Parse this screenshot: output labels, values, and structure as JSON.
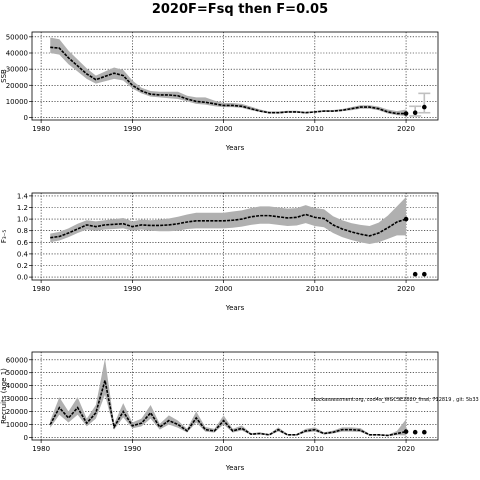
{
  "title": "2020F=Fsq then F=0.05",
  "annotation": "stockassessment.org, cod4a_WGCSE2020_final, 712819 , git: 5b33",
  "colors": {
    "band": "#b0b0b0",
    "line": "#000000",
    "bar": "#c0c0c0",
    "grid": "#000000"
  },
  "chart_data": [
    {
      "type": "line",
      "ylabel": "SSB",
      "xlabel": "Years",
      "xlim": [
        1979,
        2023.5
      ],
      "ylim": [
        -1500,
        53000
      ],
      "xticks": [
        1980,
        1990,
        2000,
        2010,
        2020
      ],
      "yticks": [
        0,
        10000,
        20000,
        30000,
        40000,
        50000
      ],
      "x": [
        1981,
        1982,
        1983,
        1984,
        1985,
        1986,
        1987,
        1988,
        1989,
        1990,
        1991,
        1992,
        1993,
        1994,
        1995,
        1996,
        1997,
        1998,
        1999,
        2000,
        2001,
        2002,
        2003,
        2004,
        2005,
        2006,
        2007,
        2008,
        2009,
        2010,
        2011,
        2012,
        2013,
        2014,
        2015,
        2016,
        2017,
        2018,
        2019,
        2020
      ],
      "y": [
        43500,
        43000,
        37000,
        32000,
        27000,
        23500,
        25500,
        27500,
        26000,
        20000,
        16500,
        14500,
        14000,
        14000,
        13500,
        11500,
        10000,
        9500,
        8500,
        7500,
        7500,
        7000,
        5500,
        4000,
        3000,
        3000,
        3500,
        3500,
        3000,
        3500,
        4000,
        4000,
        4500,
        5500,
        6500,
        6500,
        5500,
        3500,
        2500,
        2500
      ],
      "lower": [
        40000,
        39000,
        33000,
        28500,
        24000,
        21000,
        22500,
        24000,
        23000,
        18000,
        15000,
        13000,
        12500,
        12000,
        11500,
        10000,
        8500,
        8000,
        7000,
        6500,
        6500,
        6000,
        4500,
        3500,
        2500,
        2500,
        3000,
        3000,
        2500,
        3000,
        3500,
        3500,
        4000,
        4500,
        5500,
        5500,
        4500,
        2500,
        1500,
        1000
      ],
      "upper": [
        49500,
        48500,
        41500,
        36000,
        30500,
        26000,
        28500,
        31000,
        29500,
        23000,
        18500,
        16500,
        16000,
        16000,
        16000,
        13500,
        12500,
        12500,
        10500,
        9000,
        9000,
        8500,
        6800,
        5000,
        3800,
        3800,
        4200,
        4200,
        3600,
        4100,
        4700,
        4700,
        5300,
        6500,
        7600,
        7600,
        6800,
        5000,
        4000,
        5000
      ],
      "forecast": [
        {
          "x": 2020,
          "y": 2500
        },
        {
          "x": 2021,
          "y": 3000,
          "lower": 1000,
          "upper": 7000
        },
        {
          "x": 2022,
          "y": 6500,
          "lower": 3000,
          "upper": 15000
        }
      ]
    },
    {
      "type": "line",
      "ylabel": "F₃₋₅",
      "xlabel": "Years",
      "xlim": [
        1979,
        2023.5
      ],
      "ylim": [
        -0.05,
        1.45
      ],
      "xticks": [
        1980,
        1990,
        2000,
        2010,
        2020
      ],
      "yticks": [
        0.0,
        0.2,
        0.4,
        0.6,
        0.8,
        1.0,
        1.2,
        1.4
      ],
      "ytick_labels": [
        "0.0",
        "0.2",
        "0.4",
        "0.6",
        "0.8",
        "1.0",
        "1.2",
        "1.4"
      ],
      "x": [
        1981,
        1982,
        1983,
        1984,
        1985,
        1986,
        1987,
        1988,
        1989,
        1990,
        1991,
        1992,
        1993,
        1994,
        1995,
        1996,
        1997,
        1998,
        1999,
        2000,
        2001,
        2002,
        2003,
        2004,
        2005,
        2006,
        2007,
        2008,
        2009,
        2010,
        2011,
        2012,
        2013,
        2014,
        2015,
        2016,
        2017,
        2018,
        2019,
        2020
      ],
      "y": [
        0.68,
        0.7,
        0.76,
        0.83,
        0.9,
        0.87,
        0.9,
        0.91,
        0.92,
        0.87,
        0.9,
        0.89,
        0.89,
        0.9,
        0.92,
        0.95,
        0.97,
        0.97,
        0.97,
        0.97,
        0.98,
        1.0,
        1.04,
        1.06,
        1.06,
        1.04,
        1.02,
        1.03,
        1.08,
        1.03,
        1.01,
        0.9,
        0.83,
        0.78,
        0.74,
        0.71,
        0.76,
        0.85,
        0.95,
        1.0
      ],
      "lower": [
        0.6,
        0.63,
        0.69,
        0.76,
        0.82,
        0.8,
        0.82,
        0.83,
        0.84,
        0.8,
        0.82,
        0.8,
        0.79,
        0.79,
        0.8,
        0.83,
        0.84,
        0.84,
        0.84,
        0.84,
        0.85,
        0.87,
        0.9,
        0.92,
        0.92,
        0.9,
        0.88,
        0.89,
        0.93,
        0.88,
        0.86,
        0.76,
        0.69,
        0.64,
        0.6,
        0.57,
        0.6,
        0.66,
        0.72,
        0.72
      ],
      "upper": [
        0.75,
        0.78,
        0.84,
        0.92,
        0.98,
        0.96,
        0.98,
        1.0,
        1.02,
        0.96,
        0.99,
        0.98,
        0.99,
        1.01,
        1.04,
        1.08,
        1.11,
        1.11,
        1.11,
        1.11,
        1.13,
        1.15,
        1.19,
        1.22,
        1.22,
        1.2,
        1.18,
        1.19,
        1.24,
        1.19,
        1.17,
        1.05,
        0.98,
        0.93,
        0.9,
        0.88,
        0.94,
        1.06,
        1.22,
        1.38
      ],
      "forecast": [
        {
          "x": 2020,
          "y": 1.0
        },
        {
          "x": 2021,
          "y": 0.05
        },
        {
          "x": 2022,
          "y": 0.05
        }
      ]
    },
    {
      "type": "line",
      "ylabel": "Recruits (age 1)",
      "xlabel": "Years",
      "xlim": [
        1979,
        2023.5
      ],
      "ylim": [
        -2000,
        66000
      ],
      "xticks": [
        1980,
        1990,
        2000,
        2010,
        2020
      ],
      "yticks": [
        0,
        10000,
        20000,
        30000,
        40000,
        50000,
        60000
      ],
      "x": [
        1981,
        1982,
        1983,
        1984,
        1985,
        1986,
        1987,
        1988,
        1989,
        1990,
        1991,
        1992,
        1993,
        1994,
        1995,
        1996,
        1997,
        1998,
        1999,
        2000,
        2001,
        2002,
        2003,
        2004,
        2005,
        2006,
        2007,
        2008,
        2009,
        2010,
        2011,
        2012,
        2013,
        2014,
        2015,
        2016,
        2017,
        2018,
        2019,
        2020
      ],
      "y": [
        10000,
        23000,
        15000,
        23000,
        11000,
        19000,
        44000,
        8000,
        20000,
        9000,
        11000,
        19000,
        8000,
        13000,
        10000,
        5000,
        15000,
        6000,
        5000,
        13000,
        5000,
        7000,
        2500,
        3000,
        2000,
        6000,
        2000,
        2000,
        5000,
        6000,
        3000,
        4000,
        6000,
        6000,
        5500,
        2000,
        2000,
        1500,
        3000,
        4500
      ],
      "lower": [
        7500,
        17500,
        11500,
        17500,
        8500,
        14500,
        33000,
        6000,
        15500,
        7000,
        8500,
        14500,
        6000,
        10000,
        7500,
        3800,
        11500,
        4500,
        3800,
        10000,
        3800,
        5300,
        1900,
        2300,
        1500,
        4600,
        1500,
        1500,
        3800,
        4600,
        2300,
        3000,
        4500,
        4500,
        4200,
        1500,
        1500,
        1100,
        1800,
        1500
      ],
      "upper": [
        13000,
        31000,
        20000,
        31000,
        14500,
        25000,
        61000,
        10500,
        26500,
        11500,
        14500,
        25000,
        10500,
        17000,
        13000,
        6600,
        20000,
        8000,
        6600,
        17000,
        6600,
        9200,
        3300,
        3900,
        2600,
        7800,
        2600,
        2600,
        6600,
        7800,
        3900,
        5200,
        7800,
        7800,
        7200,
        2600,
        2600,
        2000,
        5000,
        14000
      ],
      "forecast": [
        {
          "x": 2020,
          "y": 4500
        },
        {
          "x": 2021,
          "y": 4000
        },
        {
          "x": 2022,
          "y": 4000
        }
      ]
    }
  ]
}
